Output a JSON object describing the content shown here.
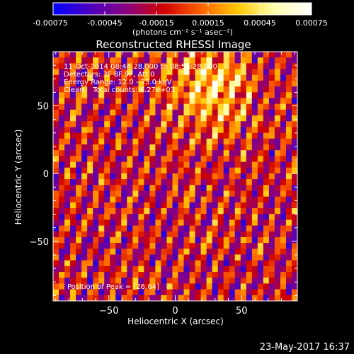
{
  "chart_data": {
    "type": "heatmap",
    "title": "Reconstructed RHESSI Image",
    "xlabel": "Heliocentric X (arcsec)",
    "ylabel": "Heliocentric Y (arcsec)",
    "xlim": [
      -92,
      92
    ],
    "ylim": [
      -94,
      90
    ],
    "xticks": [
      -50,
      0,
      50
    ],
    "yticks": [
      50,
      0,
      -50
    ],
    "colorbar": {
      "range": [
        -0.00075,
        0.00075
      ],
      "ticks": [
        "-0.00075",
        "-0.00045",
        "-0.00015",
        "0.00015",
        "0.00045",
        "0.00075"
      ],
      "units_label": "(photons cm⁻² s⁻¹ asec⁻²)",
      "colormap": [
        "#0000ff",
        "#4c00c0",
        "#8a0080",
        "#d00000",
        "#ff6000",
        "#ffc800",
        "#ffffb0",
        "#ffffff"
      ]
    },
    "annotations": [
      "11-Oct-2014 08:44:28.000 to 08:54:28.000",
      "Detectors: 3F 8F 9F, Att 0",
      "Energy Range: 12.0 - 25.0 keV",
      "Clean    Total counts: 6.27e+03"
    ],
    "peak_label": "Position of Peak = [26,64]",
    "peak": [
      26,
      64
    ],
    "grid": false
  },
  "footer": {
    "timestamp": "23-May-2017 16:37"
  }
}
